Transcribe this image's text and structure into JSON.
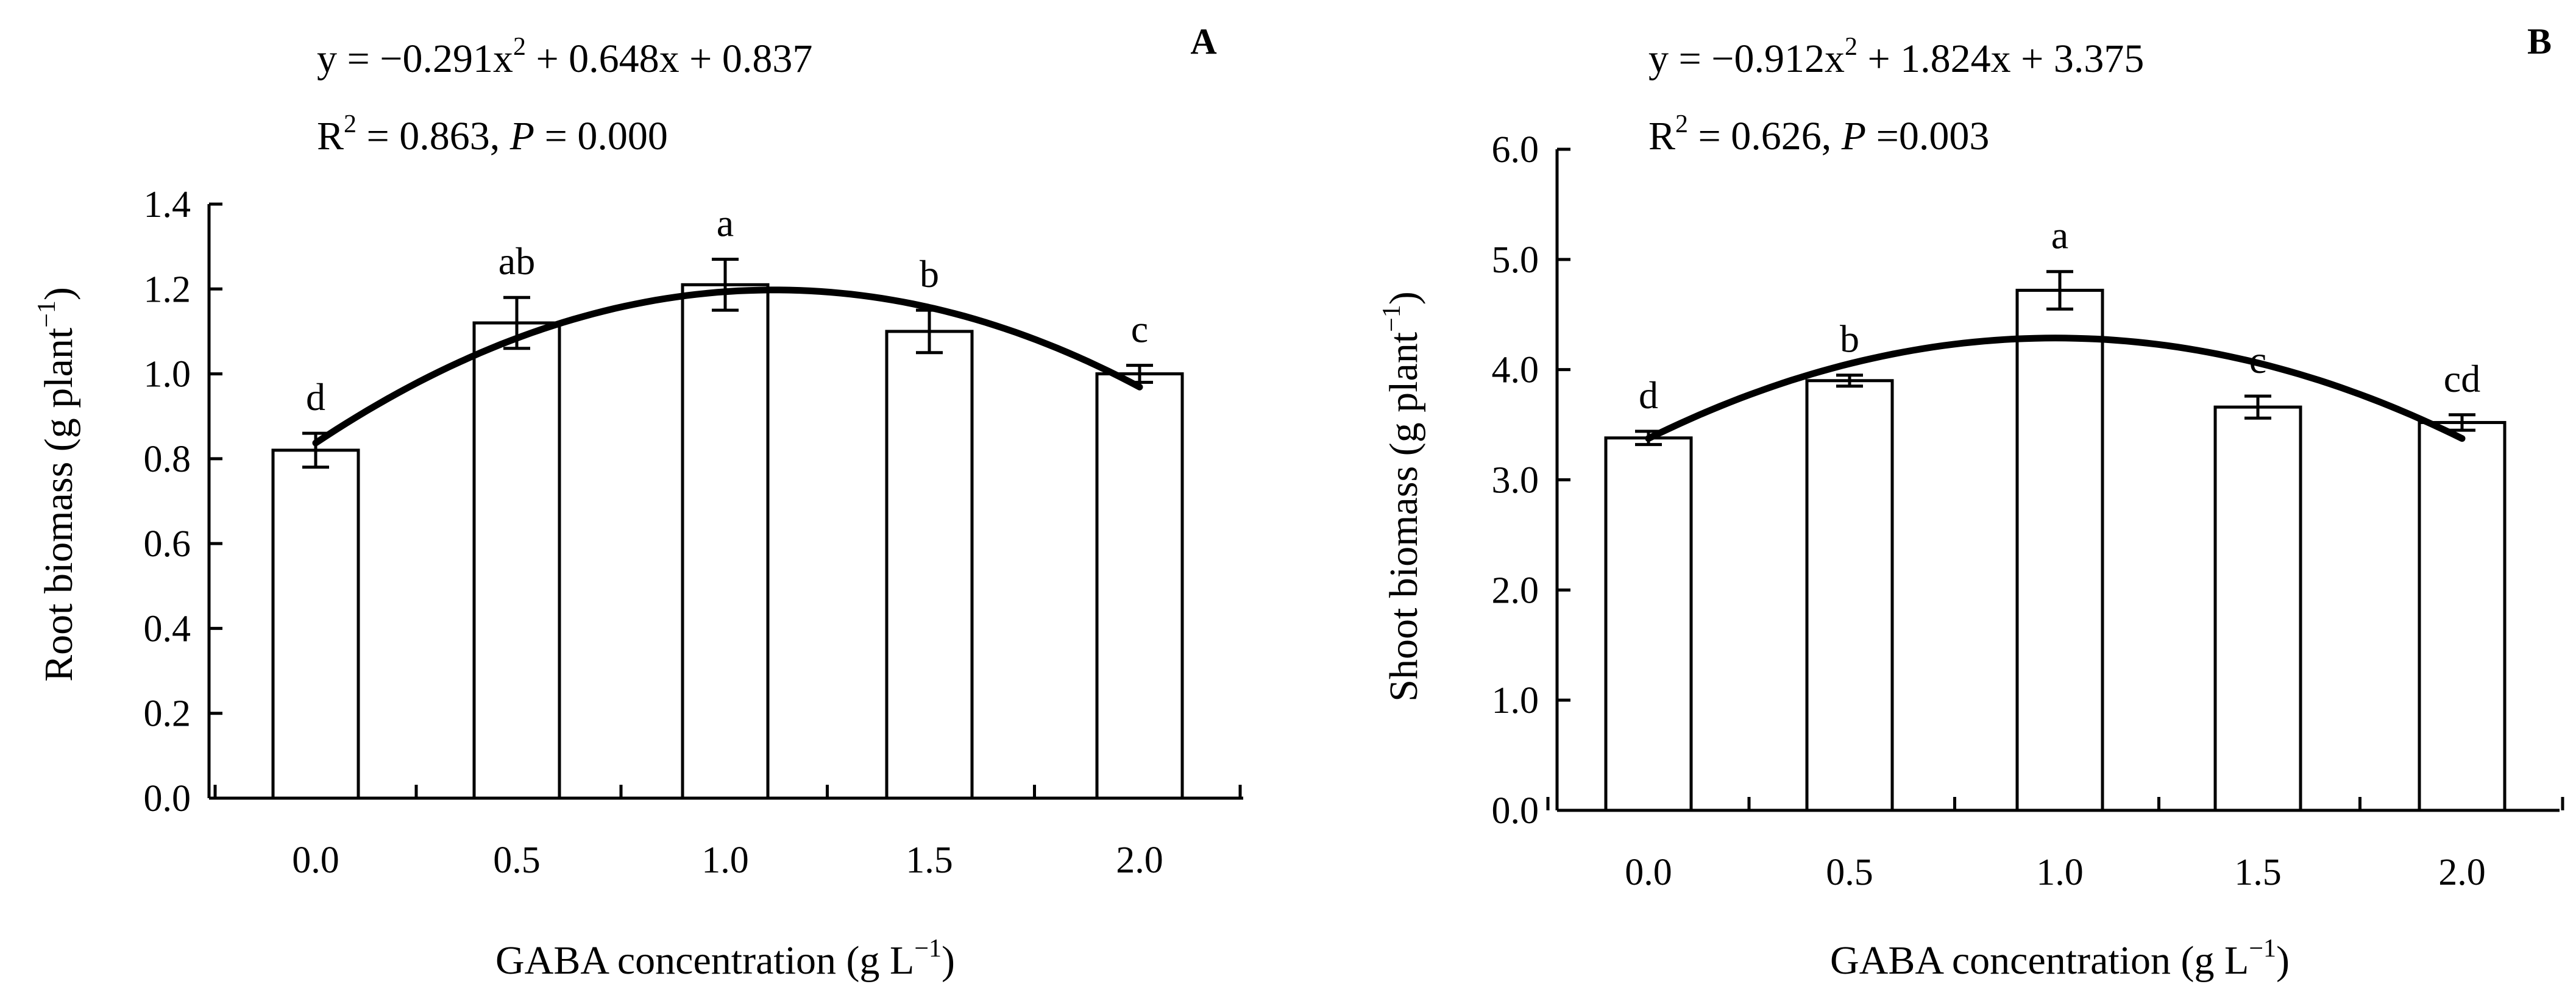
{
  "chart_data": [
    {
      "type": "bar",
      "panel_label": "A",
      "title": "",
      "xlabel": "GABA concentration (g L",
      "xlabel_sup": "−1",
      "xlabel_end": ")",
      "ylabel": "Root biomass (g plant",
      "ylabel_sup": "−1",
      "ylabel_end": ")",
      "categories": [
        "0.0",
        "0.5",
        "1.0",
        "1.5",
        "2.0"
      ],
      "x": [
        0.0,
        0.5,
        1.0,
        1.5,
        2.0
      ],
      "values": [
        0.82,
        1.12,
        1.21,
        1.1,
        1.0
      ],
      "errors": [
        0.04,
        0.06,
        0.06,
        0.05,
        0.02
      ],
      "significance": [
        "d",
        "ab",
        "a",
        "b",
        "c"
      ],
      "ylim": [
        0,
        1.4
      ],
      "yticks": [
        "0.0",
        "0.2",
        "0.4",
        "0.6",
        "0.8",
        "1.0",
        "1.2",
        "1.4"
      ],
      "grid": false,
      "fit": {
        "a": -0.291,
        "b": 0.648,
        "c": 0.837
      },
      "equation": {
        "line1_a": "y = −0.291x",
        "line1_sup": "2",
        "line1_b": " + 0.648x + 0.837",
        "line2_a": "R",
        "line2_sup": "2",
        "line2_b": " = 0.863, ",
        "line2_p": "P",
        "line2_c": " = 0.000"
      }
    },
    {
      "type": "bar",
      "panel_label": "B",
      "title": "",
      "xlabel": "GABA concentration (g L",
      "xlabel_sup": "−1",
      "xlabel_end": ")",
      "ylabel": "Shoot biomass (g plant",
      "ylabel_sup": "−1",
      "ylabel_end": ")",
      "categories": [
        "0.0",
        "0.5",
        "1.0",
        "1.5",
        "2.0"
      ],
      "x": [
        0.0,
        0.5,
        1.0,
        1.5,
        2.0
      ],
      "values": [
        3.38,
        3.9,
        4.72,
        3.66,
        3.52
      ],
      "errors": [
        0.06,
        0.05,
        0.17,
        0.1,
        0.07
      ],
      "significance": [
        "d",
        "b",
        "a",
        "c",
        "cd"
      ],
      "ylim": [
        0,
        6.0
      ],
      "yticks": [
        "0.0",
        "1.0",
        "2.0",
        "3.0",
        "4.0",
        "5.0",
        "6.0"
      ],
      "grid": false,
      "fit": {
        "a": -0.912,
        "b": 1.824,
        "c": 3.375
      },
      "equation": {
        "line1_a": "y = −0.912x",
        "line1_sup": "2",
        "line1_b": " + 1.824x + 3.375",
        "line2_a": "R",
        "line2_sup": "2",
        "line2_b": " = 0.626, ",
        "line2_p": "P",
        "line2_c": " =0.003"
      }
    }
  ]
}
